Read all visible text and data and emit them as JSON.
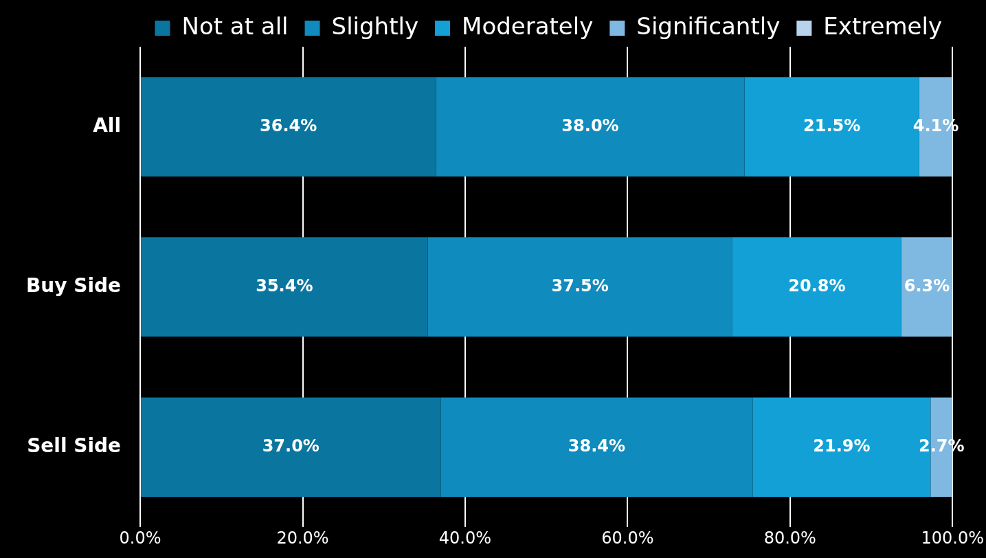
{
  "chart_data": {
    "type": "bar",
    "orientation": "horizontal",
    "stacked": true,
    "categories": [
      "All",
      "Buy Side",
      "Sell Side"
    ],
    "series": [
      {
        "name": "Not at all",
        "color": "#0a76a0",
        "values": [
          36.4,
          35.4,
          37.0
        ],
        "value_labels": [
          "36.4%",
          "35.4%",
          "37.0%"
        ]
      },
      {
        "name": "Slightly",
        "color": "#0f8bbd",
        "values": [
          38.0,
          37.5,
          38.4
        ],
        "value_labels": [
          "38.0%",
          "37.5%",
          "38.4%"
        ]
      },
      {
        "name": "Moderately",
        "color": "#12a0d7",
        "values": [
          21.5,
          20.8,
          21.9
        ],
        "value_labels": [
          "21.5%",
          "20.8%",
          "21.9%"
        ]
      },
      {
        "name": "Significantly",
        "color": "#7fb8e0",
        "values": [
          4.1,
          6.3,
          2.7
        ],
        "value_labels": [
          "4.1%",
          "6.3%",
          "2.7%"
        ]
      },
      {
        "name": "Extremely",
        "color": "#b8d4ec",
        "values": [
          0,
          0,
          0
        ],
        "value_labels": [
          null,
          null,
          null
        ]
      }
    ],
    "xlim": [
      0,
      100
    ],
    "xticks": [
      {
        "value": 0,
        "label": "0.0%"
      },
      {
        "value": 20,
        "label": "20.0%"
      },
      {
        "value": 40,
        "label": "40.0%"
      },
      {
        "value": 60,
        "label": "60.0%"
      },
      {
        "value": 80,
        "label": "80.0%"
      },
      {
        "value": 100,
        "label": "100.0%"
      }
    ],
    "grid": "x",
    "legend": "top"
  }
}
